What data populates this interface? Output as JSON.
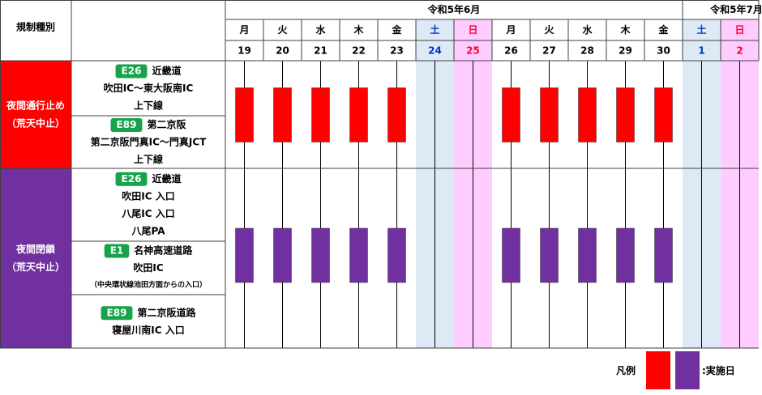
{
  "header": {
    "category_label": "規制種別",
    "months": [
      {
        "label": "令和5年6月",
        "days": [
          {
            "weekday": "月",
            "date": "19",
            "kind": "weekday"
          },
          {
            "weekday": "火",
            "date": "20",
            "kind": "weekday"
          },
          {
            "weekday": "水",
            "date": "21",
            "kind": "weekday"
          },
          {
            "weekday": "木",
            "date": "22",
            "kind": "weekday"
          },
          {
            "weekday": "金",
            "date": "23",
            "kind": "weekday"
          },
          {
            "weekday": "土",
            "date": "24",
            "kind": "saturday"
          },
          {
            "weekday": "日",
            "date": "25",
            "kind": "sunday"
          },
          {
            "weekday": "月",
            "date": "26",
            "kind": "weekday"
          },
          {
            "weekday": "火",
            "date": "27",
            "kind": "weekday"
          },
          {
            "weekday": "水",
            "date": "28",
            "kind": "weekday"
          },
          {
            "weekday": "木",
            "date": "29",
            "kind": "weekday"
          },
          {
            "weekday": "金",
            "date": "30",
            "kind": "weekday"
          }
        ]
      },
      {
        "label": "令和5年7月",
        "days": [
          {
            "weekday": "土",
            "date": "1",
            "kind": "saturday"
          },
          {
            "weekday": "日",
            "date": "2",
            "kind": "sunday"
          }
        ]
      }
    ]
  },
  "sections": [
    {
      "category": [
        "夜間通行止め",
        "（荒天中止）"
      ],
      "color": "#ff0000",
      "active": [
        true,
        true,
        true,
        true,
        true,
        false,
        false,
        true,
        true,
        true,
        true,
        true,
        false,
        false
      ],
      "entries": [
        {
          "badge": "E26",
          "name": "近畿道",
          "lines": [
            "吹田IC～東大阪南IC",
            "上下線"
          ]
        },
        {
          "badge": "E89",
          "name": "第二京阪",
          "lines": [
            "第二京阪門真IC～門真JCT",
            "上下線"
          ]
        }
      ]
    },
    {
      "category": [
        "夜間閉鎖",
        "（荒天中止）"
      ],
      "color": "#7030a0",
      "active": [
        true,
        true,
        true,
        true,
        true,
        false,
        false,
        true,
        true,
        true,
        true,
        true,
        false,
        false
      ],
      "entries": [
        {
          "badge": "E26",
          "name": "近畿道",
          "lines": [
            "吹田IC 入口",
            "八尾IC 入口",
            "八尾PA"
          ]
        },
        {
          "badge": "E1",
          "name": "名神高速道路",
          "lines": [
            "吹田IC"
          ],
          "note": "（中央環状線池田方面からの入口）"
        },
        {
          "badge": "E89",
          "name": "第二京阪道路",
          "lines": [
            "寝屋川南IC 入口"
          ]
        }
      ]
    }
  ],
  "legend": {
    "label": "凡例",
    "text": ":実施日"
  }
}
